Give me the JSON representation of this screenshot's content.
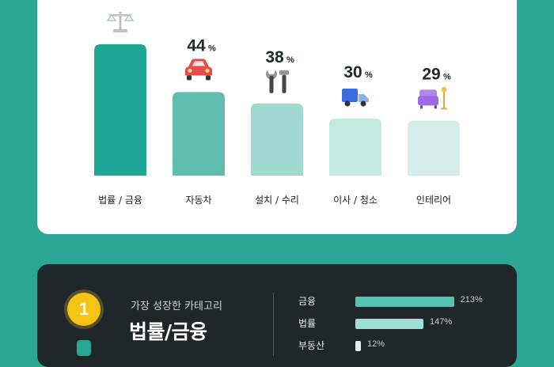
{
  "chart_data": [
    {
      "type": "bar",
      "categories": [
        "법률 / 금융",
        "자동차",
        "설치 / 수리",
        "이사 / 청소",
        "인테리어"
      ],
      "values": [
        null,
        44,
        38,
        30,
        29
      ],
      "value_suffix": "%",
      "icons": [
        "scale-icon",
        "car-icon",
        "tools-icon",
        "truck-icon",
        "sofa-icon"
      ],
      "colors": [
        "#1fa696",
        "#5fbdaf",
        "#9fd9cf",
        "#c3e8e1",
        "#d3eeea"
      ]
    },
    {
      "type": "bar",
      "orientation": "horizontal",
      "categories": [
        "금융",
        "법률",
        "부동산"
      ],
      "values": [
        213,
        147,
        12
      ],
      "value_suffix": "%",
      "colors": [
        "#52c2b3",
        "#9fe0d6",
        "#e6ecec"
      ]
    }
  ],
  "panel": {
    "rank": "1",
    "subtitle": "가장 성장한 카테고리",
    "headline": "법률/금융"
  }
}
